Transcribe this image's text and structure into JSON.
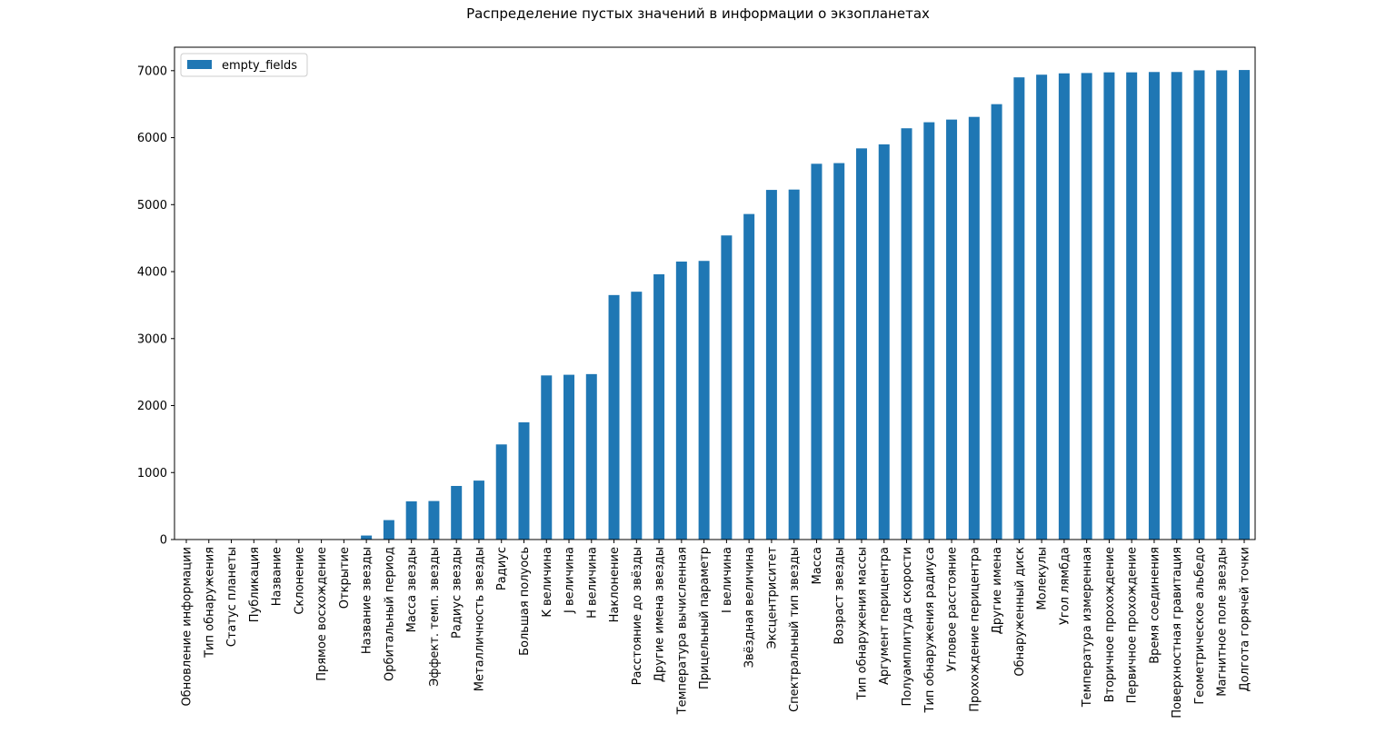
{
  "chart_data": {
    "type": "bar",
    "title": "Распределение пустых значений в информации о экзопланетах",
    "xlabel": "",
    "ylabel": "",
    "ylim": [
      0,
      7350
    ],
    "yticks": [
      0,
      1000,
      2000,
      3000,
      4000,
      5000,
      6000,
      7000
    ],
    "legend_position": "top-left",
    "grid": false,
    "color": "#1f77b4",
    "categories": [
      "Обновление информации",
      "Тип обнаружения",
      "Статус планеты",
      "Публикация",
      "Название",
      "Склонение",
      "Прямое восхождение",
      "Открытие",
      "Название звезды",
      "Орбитальный период",
      "Масса звезды",
      "Эффект. темп. звезды",
      "Радиус звезды",
      "Металличность звезды",
      "Радиус",
      "Большая полуось",
      "K величина",
      "J величина",
      "H величина",
      "Наклонение",
      "Расстояние до звёзды",
      "Другие имена звезды",
      "Температура вычисленная",
      "Прицельный параметр",
      "I величина",
      "Звёздная величина",
      "Эксцентриситет",
      "Спектральный тип звезды",
      "Масса",
      "Возраст звезды",
      "Тип обнаружения массы",
      "Аргумент перицентра",
      "Полуамплитуда скорости",
      "Тип обнаружения радиуса",
      "Угловое расстояние",
      "Прохождение перицентра",
      "Другие имена",
      "Обнаруженный диск",
      "Молекулы",
      "Угол лямбда",
      "Температура измеренная",
      "Вторичное прохождение",
      "Первичное прохождение",
      "Время соединения",
      "Поверхностная гравитация",
      "Геометрическое альбедо",
      "Магнитное поле звезды",
      "Долгота горячей точки"
    ],
    "series": [
      {
        "name": "empty_fields",
        "values": [
          0,
          0,
          0,
          0,
          0,
          5,
          5,
          5,
          60,
          290,
          570,
          575,
          800,
          880,
          1420,
          1750,
          2450,
          2460,
          2470,
          3650,
          3700,
          3960,
          4150,
          4160,
          4540,
          4860,
          5220,
          5225,
          5610,
          5620,
          5840,
          5900,
          6140,
          6230,
          6270,
          6310,
          6500,
          6900,
          6940,
          6960,
          6965,
          6975,
          6975,
          6980,
          6980,
          7005,
          7005,
          7010
        ]
      }
    ]
  }
}
